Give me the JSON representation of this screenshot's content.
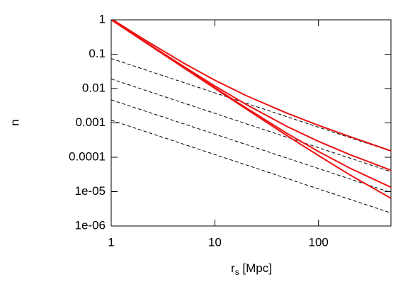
{
  "chart_data": {
    "type": "line",
    "xlabel": "r",
    "xlabel_sub": "s",
    "xlabel_rest": " [Mpc]",
    "ylabel": "n",
    "xlog": true,
    "ylog": true,
    "xlim": [
      1,
      500
    ],
    "ylim": [
      1e-06,
      1
    ],
    "xticks": [
      1,
      10,
      100
    ],
    "yticks": [
      1,
      0.1,
      0.01,
      0.001,
      0.0001,
      {
        "value": 1e-05,
        "label": "1e-05"
      },
      {
        "value": 1e-06,
        "label": "1e-06"
      }
    ],
    "series": [
      {
        "color": "#000000",
        "dashed": true,
        "x": [
          1,
          500
        ],
        "values": [
          0.075,
          0.00015
        ]
      },
      {
        "color": "#000000",
        "dashed": true,
        "x": [
          1,
          500
        ],
        "values": [
          0.019,
          3.8e-05
        ]
      },
      {
        "color": "#000000",
        "dashed": true,
        "x": [
          1,
          500
        ],
        "values": [
          0.0047,
          9.4e-06
        ]
      },
      {
        "color": "#000000",
        "dashed": true,
        "x": [
          1,
          500
        ],
        "values": [
          0.0012,
          2.4e-06
        ]
      },
      {
        "color": "#ee1111",
        "dashed": false,
        "x": [
          1,
          2,
          5,
          10,
          20,
          50,
          100,
          200,
          500
        ],
        "values": [
          1.075,
          0.2875,
          0.055,
          0.0175,
          0.00625,
          0.0019,
          0.00085,
          0.0004,
          0.000154
        ]
      },
      {
        "color": "#ee1111",
        "dashed": false,
        "x": [
          1,
          2,
          5,
          10,
          20,
          50,
          100,
          200,
          500
        ],
        "values": [
          1.019,
          0.2595,
          0.0438,
          0.0119,
          0.00345,
          0.00078,
          0.00029,
          0.00012,
          4.2e-05
        ]
      },
      {
        "color": "#ee1111",
        "dashed": false,
        "x": [
          1,
          2,
          5,
          10,
          20,
          50,
          100,
          200,
          500
        ],
        "values": [
          1.005,
          0.252,
          0.0409,
          0.0105,
          0.00274,
          0.00049,
          0.000147,
          4.85e-05,
          1.34e-05
        ]
      },
      {
        "color": "#ee1111",
        "dashed": false,
        "x": [
          1,
          2,
          5,
          10,
          20,
          50,
          100,
          200,
          500
        ],
        "values": [
          1.001,
          0.251,
          0.0402,
          0.0101,
          0.00256,
          0.00042,
          0.000112,
          3.1e-05,
          6.4e-06
        ]
      }
    ]
  }
}
